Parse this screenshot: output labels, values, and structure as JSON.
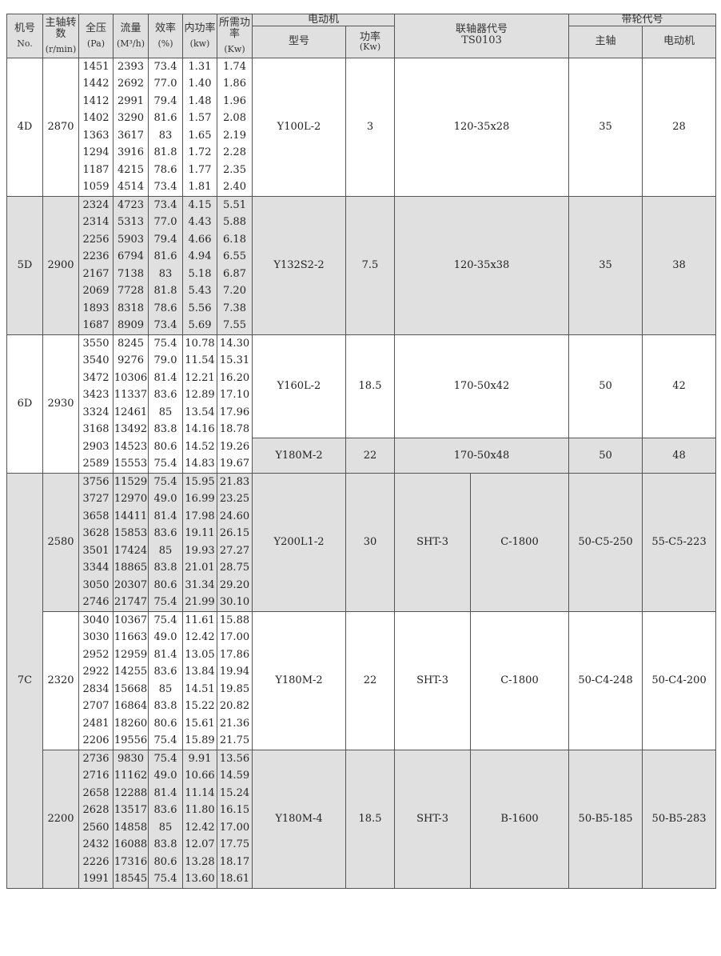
{
  "header": {
    "no": "机号",
    "no_en": "No.",
    "speed": "主轴转数",
    "speed_unit": "(r/min)",
    "pressure": "全压",
    "pressure_unit": "(Pa)",
    "flow": "流量",
    "flow_unit": "(M³/h)",
    "eff": "效率",
    "eff_unit": "(%)",
    "inner_power": "内功率",
    "inner_power_unit": "(kw)",
    "req_power": "所需功率",
    "req_power_unit": "(Kw)",
    "motor": "电动机",
    "motor_model": "型号",
    "motor_power": "功率",
    "motor_power_unit": "(Kw)",
    "coupling": "联轴器代号",
    "coupling_code": "TS0103",
    "belt": "带轮代号",
    "belt_main": "主轴",
    "belt_motor": "电动机"
  },
  "colors": {
    "shade": "#e0e0e0",
    "border": "#555555"
  },
  "groups": [
    {
      "no": "4D",
      "shade": false,
      "speeds": [
        {
          "rpm": "2870",
          "shade": false,
          "rows": [
            [
              "1451",
              "2393",
              "73.4",
              "1.31",
              "1.74"
            ],
            [
              "1442",
              "2692",
              "77.0",
              "1.40",
              "1.86"
            ],
            [
              "1412",
              "2991",
              "79.4",
              "1.48",
              "1.96"
            ],
            [
              "1402",
              "3290",
              "81.6",
              "1.57",
              "2.08"
            ],
            [
              "1363",
              "3617",
              "83",
              "1.65",
              "2.19"
            ],
            [
              "1294",
              "3916",
              "81.8",
              "1.72",
              "2.28"
            ],
            [
              "1187",
              "4215",
              "78.6",
              "1.77",
              "2.35"
            ],
            [
              "1059",
              "4514",
              "73.4",
              "1.81",
              "2.40"
            ]
          ],
          "motors": [
            {
              "model": "Y100L-2",
              "power": "3",
              "coupling": "120-35x28",
              "belt_main": "35",
              "belt_motor": "28"
            }
          ]
        }
      ]
    },
    {
      "no": "5D",
      "shade": true,
      "speeds": [
        {
          "rpm": "2900",
          "shade": true,
          "rows": [
            [
              "2324",
              "4723",
              "73.4",
              "4.15",
              "5.51"
            ],
            [
              "2314",
              "5313",
              "77.0",
              "4.43",
              "5.88"
            ],
            [
              "2256",
              "5903",
              "79.4",
              "4.66",
              "6.18"
            ],
            [
              "2236",
              "6794",
              "81.6",
              "4.94",
              "6.55"
            ],
            [
              "2167",
              "7138",
              "83",
              "5.18",
              "6.87"
            ],
            [
              "2069",
              "7728",
              "81.8",
              "5.43",
              "7.20"
            ],
            [
              "1893",
              "8318",
              "78.6",
              "5.56",
              "7.38"
            ],
            [
              "1687",
              "8909",
              "73.4",
              "5.69",
              "7.55"
            ]
          ],
          "motors": [
            {
              "model": "Y132S2-2",
              "power": "7.5",
              "coupling": "120-35x38",
              "belt_main": "35",
              "belt_motor": "38"
            }
          ]
        }
      ]
    },
    {
      "no": "6D",
      "shade": false,
      "speeds": [
        {
          "rpm": "2930",
          "shade": false,
          "rows": [
            [
              "3550",
              "8245",
              "75.4",
              "10.78",
              "14.30"
            ],
            [
              "3540",
              "9276",
              "79.0",
              "11.54",
              "15.31"
            ],
            [
              "3472",
              "10306",
              "81.4",
              "12.21",
              "16.20"
            ],
            [
              "3423",
              "11337",
              "83.6",
              "12.89",
              "17.10"
            ],
            [
              "3324",
              "12461",
              "85",
              "13.54",
              "17.96"
            ],
            [
              "3168",
              "13492",
              "83.8",
              "14.16",
              "18.78"
            ],
            [
              "2903",
              "14523",
              "80.6",
              "14.52",
              "19.26"
            ],
            [
              "2589",
              "15553",
              "75.4",
              "14.83",
              "19.67"
            ]
          ],
          "motors": [
            {
              "model": "Y160L-2",
              "power": "18.5",
              "coupling": "170-50x42",
              "belt_main": "50",
              "belt_motor": "42",
              "shade": false
            },
            {
              "model": "Y180M-2",
              "power": "22",
              "coupling": "170-50x48",
              "belt_main": "50",
              "belt_motor": "48",
              "shade": true
            }
          ]
        }
      ]
    },
    {
      "no": "7C",
      "shade": true,
      "speeds": [
        {
          "rpm": "2580",
          "shade": true,
          "rows": [
            [
              "3756",
              "11529",
              "75.4",
              "15.95",
              "21.83"
            ],
            [
              "3727",
              "12970",
              "49.0",
              "16.99",
              "23.25"
            ],
            [
              "3658",
              "14411",
              "81.4",
              "17.98",
              "24.60"
            ],
            [
              "3628",
              "15853",
              "83.6",
              "19.11",
              "26.15"
            ],
            [
              "3501",
              "17424",
              "85",
              "19.93",
              "27.27"
            ],
            [
              "3344",
              "18865",
              "83.8",
              "21.01",
              "28.75"
            ],
            [
              "3050",
              "20307",
              "80.6",
              "31.34",
              "29.20"
            ],
            [
              "2746",
              "21747",
              "75.4",
              "21.99",
              "30.10"
            ]
          ],
          "motors": [
            {
              "model": "Y200L1-2",
              "power": "30",
              "coupling_a": "SHT-3",
              "coupling_b": "C-1800",
              "belt_main": "50-C5-250",
              "belt_motor": "55-C5-223"
            }
          ]
        },
        {
          "rpm": "2320",
          "shade": false,
          "rows": [
            [
              "3040",
              "10367",
              "75.4",
              "11.61",
              "15.88"
            ],
            [
              "3030",
              "11663",
              "49.0",
              "12.42",
              "17.00"
            ],
            [
              "2952",
              "12959",
              "81.4",
              "13.05",
              "17.86"
            ],
            [
              "2922",
              "14255",
              "83.6",
              "13.84",
              "19.94"
            ],
            [
              "2834",
              "15668",
              "85",
              "14.51",
              "19.85"
            ],
            [
              "2707",
              "16864",
              "83.8",
              "15.22",
              "20.82"
            ],
            [
              "2481",
              "18260",
              "80.6",
              "15.61",
              "21.36"
            ],
            [
              "2206",
              "19556",
              "75.4",
              "15.89",
              "21.75"
            ]
          ],
          "motors": [
            {
              "model": "Y180M-2",
              "power": "22",
              "coupling_a": "SHT-3",
              "coupling_b": "C-1800",
              "belt_main": "50-C4-248",
              "belt_motor": "50-C4-200"
            }
          ]
        },
        {
          "rpm": "2200",
          "shade": true,
          "rows": [
            [
              "2736",
              "9830",
              "75.4",
              "9.91",
              "13.56"
            ],
            [
              "2716",
              "11162",
              "49.0",
              "10.66",
              "14.59"
            ],
            [
              "2658",
              "12288",
              "81.4",
              "11.14",
              "15.24"
            ],
            [
              "2628",
              "13517",
              "83.6",
              "11.80",
              "16.15"
            ],
            [
              "2560",
              "14858",
              "85",
              "12.42",
              "17.00"
            ],
            [
              "2432",
              "16088",
              "83.8",
              "12.07",
              "17.75"
            ],
            [
              "2226",
              "17316",
              "80.6",
              "13.28",
              "18.17"
            ],
            [
              "1991",
              "18545",
              "75.4",
              "13.60",
              "18.61"
            ]
          ],
          "motors": [
            {
              "model": "Y180M-4",
              "power": "18.5",
              "coupling_a": "SHT-3",
              "coupling_b": "B-1600",
              "belt_main": "50-B5-185",
              "belt_motor": "50-B5-283"
            }
          ]
        }
      ]
    }
  ]
}
